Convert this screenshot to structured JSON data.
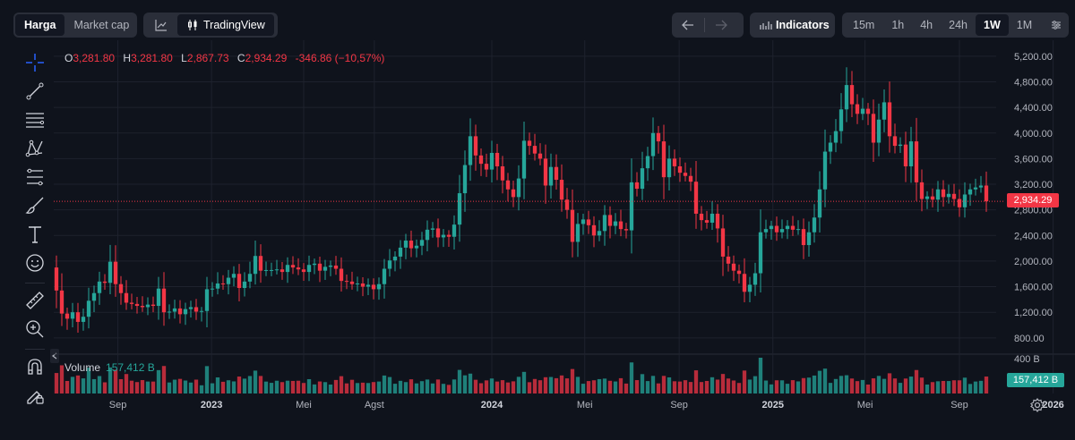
{
  "top_left": {
    "tabs": [
      "Harga",
      "Market cap"
    ],
    "active": "Harga"
  },
  "chart_switch": {
    "label": "TradingView"
  },
  "indicators": {
    "label": "Indicators"
  },
  "timeframes": {
    "items": [
      "15m",
      "1h",
      "4h",
      "24h",
      "1W",
      "1M"
    ],
    "active": "1W"
  },
  "ohlc": {
    "open": "3,281.80",
    "high": "3,281.80",
    "low": "2,867.73",
    "close": "2,934.29",
    "change": "-346.86 (−10,57%)"
  },
  "volume": {
    "label": "Volume",
    "value": "157,412 B",
    "axis_label": "400 B",
    "badge": "157,412 B"
  },
  "price_badge": "2,934.29",
  "colors": {
    "up": "#26a69a",
    "down": "#f23645",
    "background": "#0f131c",
    "grid": "#1e222d",
    "text": "#b2b5be"
  },
  "icons": [
    "crosshair-icon",
    "trendline-icon",
    "horizontal-lines-icon",
    "pattern-icon",
    "fib-icon",
    "brush-icon",
    "text-icon",
    "emoji-icon",
    "ruler-icon",
    "zoom-in-icon",
    "magnet-icon",
    "lock-pencil-icon",
    "settings-icon"
  ],
  "chart_data": {
    "type": "candlestick",
    "y_ticks": [
      "5,200.00",
      "4,800.00",
      "4,400.00",
      "4,000.00",
      "3,600.00",
      "3,200.00",
      "2,800.00",
      "2,400.00",
      "2,000.00",
      "1,600.00",
      "1,200.00",
      "800.00"
    ],
    "y_tick_values": [
      5200,
      4800,
      4400,
      4000,
      3600,
      3200,
      2800,
      2400,
      2000,
      1600,
      1200,
      800
    ],
    "x_ticks": [
      {
        "label": "Sep",
        "date": "2022-09-01",
        "bold": false
      },
      {
        "label": "2023",
        "date": "2023-01-01",
        "bold": true
      },
      {
        "label": "Mei",
        "date": "2023-05-01",
        "bold": false
      },
      {
        "label": "Agst",
        "date": "2023-08-01",
        "bold": false
      },
      {
        "label": "2024",
        "date": "2024-01-01",
        "bold": true
      },
      {
        "label": "Mei",
        "date": "2024-05-01",
        "bold": false
      },
      {
        "label": "Sep",
        "date": "2024-09-01",
        "bold": false
      },
      {
        "label": "2025",
        "date": "2025-01-01",
        "bold": true
      },
      {
        "label": "Mei",
        "date": "2025-05-01",
        "bold": false
      },
      {
        "label": "Sep",
        "date": "2025-09-01",
        "bold": false
      },
      {
        "label": "2026",
        "date": "2026-01-01",
        "bold": true
      }
    ],
    "ylim": [
      560,
      5380
    ],
    "start_date": "2022-06-13",
    "interval": "1W",
    "closes": [
      1540,
      1180,
      1100,
      1200,
      1050,
      1130,
      1380,
      1500,
      1680,
      1660,
      1990,
      1640,
      1500,
      1350,
      1330,
      1300,
      1280,
      1320,
      1300,
      1570,
      1200,
      1210,
      1260,
      1170,
      1250,
      1280,
      1210,
      1220,
      1560,
      1570,
      1650,
      1640,
      1740,
      1800,
      1580,
      1680,
      1800,
      2080,
      1850,
      1860,
      1860,
      1870,
      1830,
      1940,
      1900,
      1870,
      1830,
      1940,
      1960,
      1850,
      1910,
      1930,
      1880,
      1690,
      1680,
      1640,
      1650,
      1600,
      1630,
      1560,
      1640,
      1880,
      2010,
      2070,
      2210,
      2320,
      2200,
      2240,
      2330,
      2490,
      2510,
      2370,
      2410,
      2380,
      2570,
      3060,
      3500,
      3950,
      3650,
      3520,
      3430,
      3690,
      3480,
      3260,
      3120,
      3000,
      3290,
      3880,
      3800,
      3680,
      3600,
      3180,
      3470,
      3270,
      2960,
      2800,
      2300,
      2580,
      2650,
      2560,
      2400,
      2470,
      2720,
      2550,
      2620,
      2500,
      2480,
      3230,
      3130,
      3450,
      3640,
      4000,
      3870,
      3310,
      3600,
      3480,
      3380,
      3330,
      3240,
      2740,
      2640,
      2600,
      2740,
      2510,
      2070,
      1960,
      1850,
      1800,
      1520,
      1630,
      1810,
      2450,
      2500,
      2550,
      2450,
      2500,
      2550,
      2490,
      2500,
      2250,
      2450,
      2680,
      3120,
      3710,
      3850,
      4030,
      4370,
      4750,
      4450,
      4300,
      4380,
      4300,
      3850,
      4210,
      4480,
      3950,
      3800,
      3820,
      3480,
      3870,
      3230,
      2970,
      3010,
      2960,
      3120,
      3000,
      3050,
      2970,
      2840,
      3040,
      3120,
      3150,
      3180,
      2934
    ]
  }
}
